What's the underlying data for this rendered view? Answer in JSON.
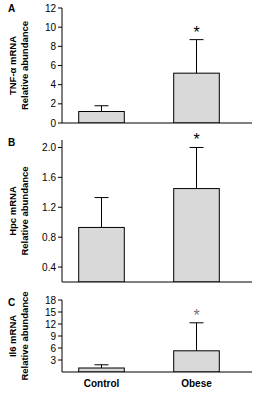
{
  "chart_data": [
    {
      "type": "bar",
      "title": "A",
      "ylabel": [
        "TNF-α mRNA",
        "Relative abundance"
      ],
      "categories": [
        "Control",
        "Obese"
      ],
      "values": [
        1.2,
        5.2
      ],
      "errors": [
        0.6,
        3.5
      ],
      "significance": [
        null,
        "*"
      ],
      "color": "#d9d9d9",
      "ylim": [
        0,
        12
      ],
      "yticks": [
        0,
        2,
        4,
        6,
        8,
        10,
        12
      ],
      "tick_labels": "y"
    },
    {
      "type": "bar",
      "title": "B",
      "ylabel": [
        "Hpc mRNA",
        "Relative abundance"
      ],
      "categories": [
        "Control",
        "Obese"
      ],
      "values": [
        0.93,
        1.45
      ],
      "errors": [
        0.4,
        0.55
      ],
      "significance": [
        null,
        "*"
      ],
      "color": "#d9d9d9",
      "ylim": [
        0.2,
        2.1
      ],
      "yticks": [
        0.4,
        0.8,
        1.2,
        1.6,
        {
          "value": 2,
          "label": "2.0"
        }
      ],
      "tick_labels": "y"
    },
    {
      "type": "bar",
      "title": "C",
      "ylabel": [
        "Il6 mRNA",
        "Relative abundance"
      ],
      "categories": [
        "Control",
        "Obese"
      ],
      "values": [
        1.0,
        5.3
      ],
      "errors": [
        0.8,
        7.0
      ],
      "significance": [
        null,
        "*"
      ],
      "color": "#d9d9d9",
      "ylim": [
        0,
        18
      ],
      "yticks": [
        3,
        6,
        9,
        12,
        15,
        18
      ]
    }
  ]
}
